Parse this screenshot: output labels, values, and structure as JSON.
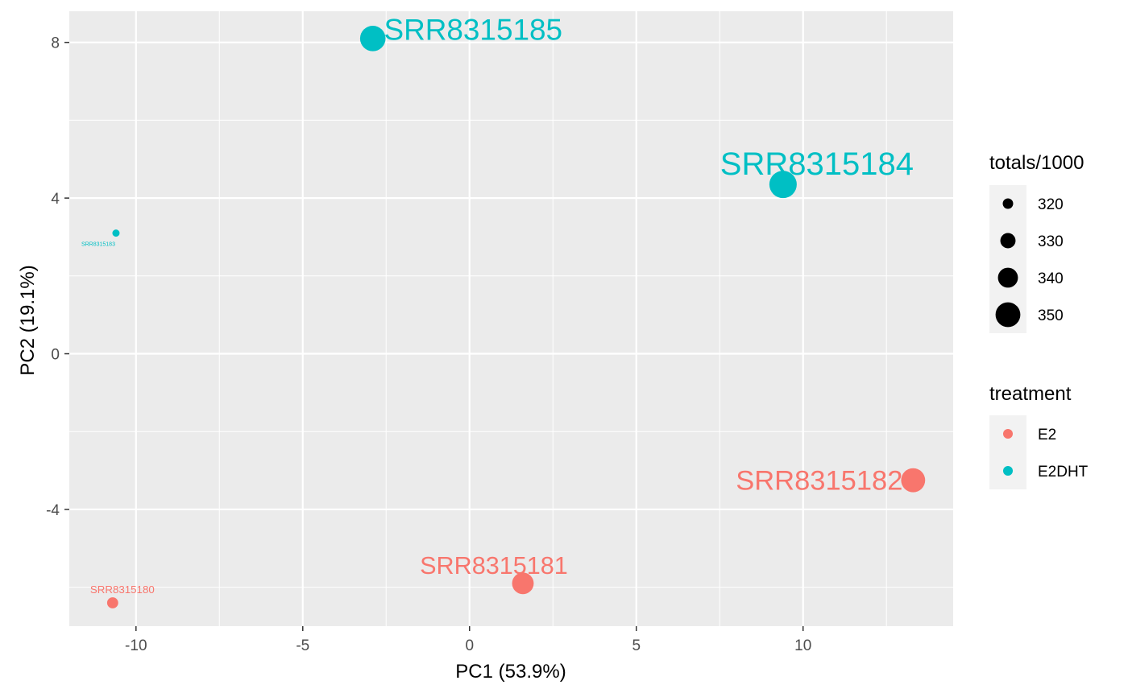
{
  "chart_data": {
    "type": "scatter",
    "title": "",
    "xlabel": "PC1 (53.9%)",
    "ylabel": "PC2 (19.1%)",
    "xlim": [
      -12,
      14.5
    ],
    "ylim": [
      -7.0,
      8.8
    ],
    "x_ticks": [
      -10,
      -5,
      0,
      5,
      10
    ],
    "x_tick_labels": [
      "-10",
      "-5",
      "0",
      "5",
      "10"
    ],
    "y_ticks": [
      -4,
      0,
      4,
      8
    ],
    "y_tick_labels": [
      "-4",
      "0",
      "4",
      "8"
    ],
    "grid": true,
    "panel_background": "#ebebeb",
    "grid_color": "#ffffff",
    "points": [
      {
        "label": "SRR8315180",
        "x": -10.7,
        "y": -6.4,
        "treatment": "E2",
        "totals_per_1000": 318
      },
      {
        "label": "SRR8315181",
        "x": 1.6,
        "y": -5.9,
        "treatment": "E2",
        "totals_per_1000": 340
      },
      {
        "label": "SRR8315182",
        "x": 13.3,
        "y": -3.25,
        "treatment": "E2",
        "totals_per_1000": 345
      },
      {
        "label": "SRR8315183",
        "x": -10.6,
        "y": 3.1,
        "treatment": "E2DHT",
        "totals_per_1000": 310
      },
      {
        "label": "SRR8315184",
        "x": 9.4,
        "y": 4.35,
        "treatment": "E2DHT",
        "totals_per_1000": 352
      },
      {
        "label": "SRR8315185",
        "x": -2.9,
        "y": 8.1,
        "treatment": "E2DHT",
        "totals_per_1000": 348
      }
    ],
    "legend_placement": "right",
    "legend": {
      "size": {
        "title": "totals/1000",
        "entries": [
          {
            "label": "320",
            "value": 320
          },
          {
            "label": "330",
            "value": 330
          },
          {
            "label": "340",
            "value": 340
          },
          {
            "label": "350",
            "value": 350
          }
        ]
      },
      "color": {
        "title": "treatment",
        "entries": [
          {
            "label": "E2",
            "color": "#f8766d"
          },
          {
            "label": "E2DHT",
            "color": "#00bfc4"
          }
        ]
      }
    }
  }
}
